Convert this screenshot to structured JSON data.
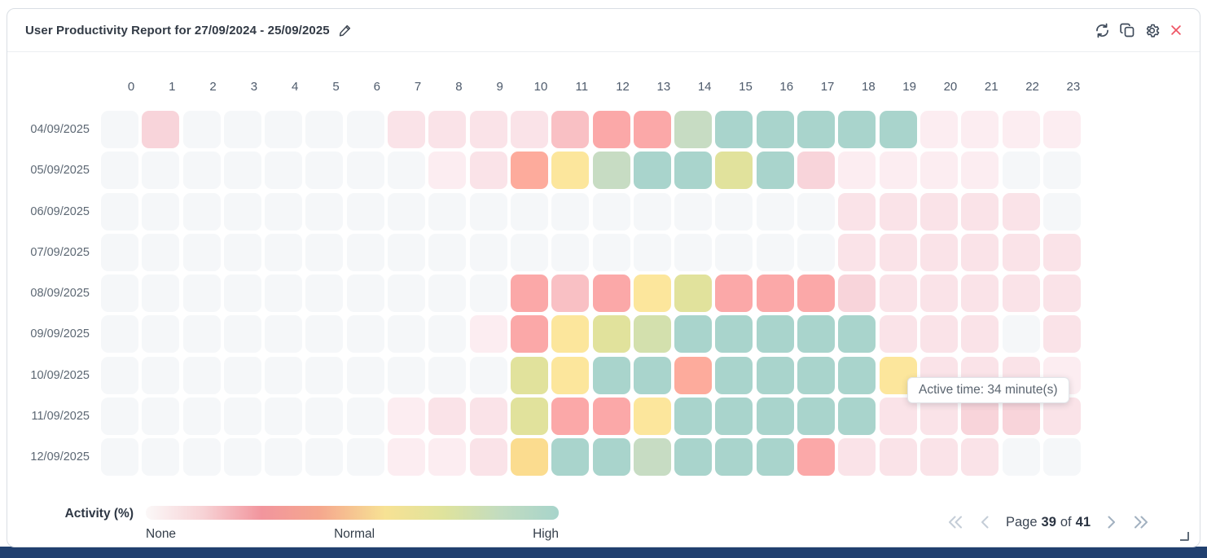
{
  "header": {
    "title": "User Productivity Report for 27/09/2024 - 25/09/2025",
    "icons": [
      "edit-icon",
      "refresh-icon",
      "copy-icon",
      "settings-icon",
      "close-icon"
    ]
  },
  "heatmap": {
    "hours": [
      "0",
      "1",
      "2",
      "3",
      "4",
      "5",
      "6",
      "7",
      "8",
      "9",
      "10",
      "11",
      "12",
      "13",
      "14",
      "15",
      "16",
      "17",
      "18",
      "19",
      "20",
      "21",
      "22",
      "23"
    ],
    "palette": {
      "g": "#f5f7f9",
      "p0": "#fcedf1",
      "p1": "#fae3e8",
      "p2": "#f8d4da",
      "p3": "#f9c0c4",
      "p4": "#fba8a8",
      "o": "#fdab9c",
      "y": "#fce69c",
      "y2": "#fbdc8f",
      "ol": "#e1e29c",
      "og": "#d3e0ad",
      "sg": "#c7dcc3",
      "t": "#a9d4cc"
    },
    "rows": [
      {
        "date": "04/09/2025",
        "cells": [
          "g",
          "p2",
          "g",
          "g",
          "g",
          "g",
          "g",
          "p1",
          "p1",
          "p1",
          "p1",
          "p3",
          "p4",
          "p4",
          "sg",
          "t",
          "t",
          "t",
          "t",
          "t",
          "p0",
          "p0",
          "p0",
          "p0"
        ]
      },
      {
        "date": "05/09/2025",
        "cells": [
          "g",
          "g",
          "g",
          "g",
          "g",
          "g",
          "g",
          "g",
          "p0",
          "p1",
          "o",
          "y",
          "sg",
          "t",
          "t",
          "ol",
          "t",
          "p2",
          "p0",
          "p0",
          "p0",
          "p0",
          "g",
          "g"
        ]
      },
      {
        "date": "06/09/2025",
        "cells": [
          "g",
          "g",
          "g",
          "g",
          "g",
          "g",
          "g",
          "g",
          "g",
          "g",
          "g",
          "g",
          "g",
          "g",
          "g",
          "g",
          "g",
          "g",
          "p1",
          "p1",
          "p1",
          "p1",
          "p1",
          "g"
        ]
      },
      {
        "date": "07/09/2025",
        "cells": [
          "g",
          "g",
          "g",
          "g",
          "g",
          "g",
          "g",
          "g",
          "g",
          "g",
          "g",
          "g",
          "g",
          "g",
          "g",
          "g",
          "g",
          "g",
          "p1",
          "p1",
          "p1",
          "p1",
          "p1",
          "p1"
        ]
      },
      {
        "date": "08/09/2025",
        "cells": [
          "g",
          "g",
          "g",
          "g",
          "g",
          "g",
          "g",
          "g",
          "g",
          "g",
          "p4",
          "p3",
          "p4",
          "y",
          "ol",
          "p4",
          "p4",
          "p4",
          "p2",
          "p1",
          "p1",
          "p1",
          "p1",
          "p1"
        ]
      },
      {
        "date": "09/09/2025",
        "cells": [
          "g",
          "g",
          "g",
          "g",
          "g",
          "g",
          "g",
          "g",
          "g",
          "p0",
          "p4",
          "y",
          "ol",
          "og",
          "t",
          "t",
          "t",
          "t",
          "t",
          "p1",
          "p1",
          "p1",
          "g",
          "p1"
        ]
      },
      {
        "date": "10/09/2025",
        "cells": [
          "g",
          "g",
          "g",
          "g",
          "g",
          "g",
          "g",
          "g",
          "g",
          "g",
          "ol",
          "y",
          "t",
          "t",
          "o",
          "t",
          "t",
          "t",
          "t",
          "y",
          "p1",
          "p1",
          "p1",
          "p0"
        ]
      },
      {
        "date": "11/09/2025",
        "cells": [
          "g",
          "g",
          "g",
          "g",
          "g",
          "g",
          "g",
          "p0",
          "p1",
          "p1",
          "ol",
          "p4",
          "p4",
          "y",
          "t",
          "t",
          "t",
          "t",
          "t",
          "p1",
          "p1",
          "p2",
          "p2",
          "p1"
        ]
      },
      {
        "date": "12/09/2025",
        "cells": [
          "g",
          "g",
          "g",
          "g",
          "g",
          "g",
          "g",
          "p0",
          "p0",
          "p1",
          "y2",
          "t",
          "t",
          "sg",
          "t",
          "t",
          "t",
          "p4",
          "p1",
          "p1",
          "p1",
          "p1",
          "g",
          "g"
        ]
      }
    ],
    "tooltip": "Active time: 34 minute(s)"
  },
  "legend": {
    "label": "Activity (%)",
    "none": "None",
    "normal": "Normal",
    "high": "High"
  },
  "pagination": {
    "page_label": "Page",
    "page": "39",
    "of_label": "of",
    "total": "41"
  },
  "chart_data": {
    "type": "heatmap",
    "title": "User Productivity Report for 27/09/2024 - 25/09/2025",
    "x": [
      "0",
      "1",
      "2",
      "3",
      "4",
      "5",
      "6",
      "7",
      "8",
      "9",
      "10",
      "11",
      "12",
      "13",
      "14",
      "15",
      "16",
      "17",
      "18",
      "19",
      "20",
      "21",
      "22",
      "23"
    ],
    "y": [
      "04/09/2025",
      "05/09/2025",
      "06/09/2025",
      "07/09/2025",
      "08/09/2025",
      "09/09/2025",
      "10/09/2025",
      "11/09/2025",
      "12/09/2025"
    ],
    "value_scale": "activity level from None (gray/white) through pink/red (low), yellow (normal), olive-green, to teal (high)",
    "levels": {
      "g": "none",
      "p0": "very-low",
      "p1": "low",
      "p2": "low-mid",
      "p3": "mid-low",
      "p4": "mid",
      "o": "mid-salmon",
      "y": "normal-yellow",
      "y2": "normal-amber",
      "ol": "above-normal",
      "og": "above-normal-green",
      "sg": "high-green",
      "t": "high-teal"
    },
    "cells": [
      [
        "g",
        "p2",
        "g",
        "g",
        "g",
        "g",
        "g",
        "p1",
        "p1",
        "p1",
        "p1",
        "p3",
        "p4",
        "p4",
        "sg",
        "t",
        "t",
        "t",
        "t",
        "t",
        "p0",
        "p0",
        "p0",
        "p0"
      ],
      [
        "g",
        "g",
        "g",
        "g",
        "g",
        "g",
        "g",
        "g",
        "p0",
        "p1",
        "o",
        "y",
        "sg",
        "t",
        "t",
        "ol",
        "t",
        "p2",
        "p0",
        "p0",
        "p0",
        "p0",
        "g",
        "g"
      ],
      [
        "g",
        "g",
        "g",
        "g",
        "g",
        "g",
        "g",
        "g",
        "g",
        "g",
        "g",
        "g",
        "g",
        "g",
        "g",
        "g",
        "g",
        "g",
        "p1",
        "p1",
        "p1",
        "p1",
        "p1",
        "g"
      ],
      [
        "g",
        "g",
        "g",
        "g",
        "g",
        "g",
        "g",
        "g",
        "g",
        "g",
        "g",
        "g",
        "g",
        "g",
        "g",
        "g",
        "g",
        "g",
        "p1",
        "p1",
        "p1",
        "p1",
        "p1",
        "p1"
      ],
      [
        "g",
        "g",
        "g",
        "g",
        "g",
        "g",
        "g",
        "g",
        "g",
        "g",
        "p4",
        "p3",
        "p4",
        "y",
        "ol",
        "p4",
        "p4",
        "p4",
        "p2",
        "p1",
        "p1",
        "p1",
        "p1",
        "p1"
      ],
      [
        "g",
        "g",
        "g",
        "g",
        "g",
        "g",
        "g",
        "g",
        "g",
        "p0",
        "p4",
        "y",
        "ol",
        "og",
        "t",
        "t",
        "t",
        "t",
        "t",
        "p1",
        "p1",
        "p1",
        "g",
        "p1"
      ],
      [
        "g",
        "g",
        "g",
        "g",
        "g",
        "g",
        "g",
        "g",
        "g",
        "g",
        "ol",
        "y",
        "t",
        "t",
        "o",
        "t",
        "t",
        "t",
        "t",
        "y",
        "p1",
        "p1",
        "p1",
        "p0"
      ],
      [
        "g",
        "g",
        "g",
        "g",
        "g",
        "g",
        "g",
        "p0",
        "p1",
        "p1",
        "ol",
        "p4",
        "p4",
        "y",
        "t",
        "t",
        "t",
        "t",
        "t",
        "p1",
        "p1",
        "p2",
        "p2",
        "p1"
      ],
      [
        "g",
        "g",
        "g",
        "g",
        "g",
        "g",
        "g",
        "p0",
        "p0",
        "p1",
        "y2",
        "t",
        "t",
        "sg",
        "t",
        "t",
        "t",
        "p4",
        "p1",
        "p1",
        "p1",
        "p1",
        "g",
        "g"
      ]
    ],
    "tooltip": {
      "row": "10/09/2025",
      "hour": "19",
      "text": "Active time: 34 minute(s)"
    },
    "legend": {
      "label": "Activity (%)",
      "ticks": [
        "None",
        "Normal",
        "High"
      ],
      "position": "bottom-left"
    }
  }
}
